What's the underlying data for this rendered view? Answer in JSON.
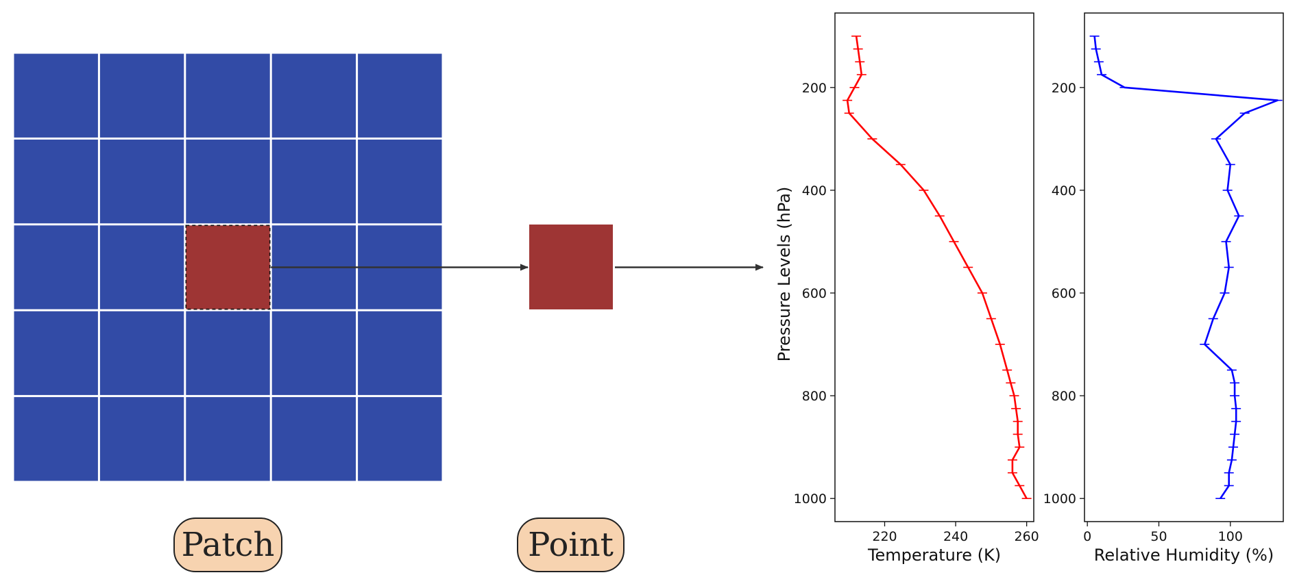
{
  "labels": {
    "patch": "Patch",
    "point": "Point"
  },
  "colors": {
    "grid_blue": "#324ba6",
    "cell_red": "#9e3534",
    "arrow": "#333333",
    "pill_fill": "#f7d3b0",
    "temperature_line": "#ff0000",
    "humidity_line": "#0000ff"
  },
  "grid": {
    "rows": 5,
    "cols": 5,
    "highlight_row": 2,
    "highlight_col": 2
  },
  "chart_data": [
    {
      "type": "line",
      "title": "",
      "xlabel": "Temperature (K)",
      "ylabel": "Pressure Levels (hPa)",
      "xlim": [
        206,
        262
      ],
      "ylim": [
        1045,
        55
      ],
      "y_inverted": true,
      "xticks": [
        220,
        240,
        260
      ],
      "yticks": [
        200,
        400,
        600,
        800,
        1000
      ],
      "error_bars": true,
      "series": [
        {
          "color": "#ff0000",
          "points": [
            [
              212,
              100
            ],
            [
              212.5,
              125
            ],
            [
              213,
              150
            ],
            [
              213.5,
              175
            ],
            [
              211.5,
              200
            ],
            [
              209.5,
              225
            ],
            [
              210,
              250
            ],
            [
              216.5,
              300
            ],
            [
              224.5,
              350
            ],
            [
              231,
              400
            ],
            [
              235.5,
              450
            ],
            [
              239.5,
              500
            ],
            [
              243.5,
              550
            ],
            [
              247.5,
              600
            ],
            [
              250,
              650
            ],
            [
              252.5,
              700
            ],
            [
              254.5,
              750
            ],
            [
              255.5,
              775
            ],
            [
              256.5,
              800
            ],
            [
              257,
              825
            ],
            [
              257.5,
              850
            ],
            [
              257.5,
              875
            ],
            [
              258,
              900
            ],
            [
              256,
              925
            ],
            [
              256,
              950
            ],
            [
              258,
              975
            ],
            [
              260,
              1000
            ]
          ]
        }
      ]
    },
    {
      "type": "line",
      "title": "",
      "xlabel": "Relative Humidity (%)",
      "ylabel": "",
      "xlim": [
        -2,
        137
      ],
      "ylim": [
        1045,
        55
      ],
      "y_inverted": true,
      "xticks": [
        0,
        50,
        100
      ],
      "yticks": [
        200,
        400,
        600,
        800,
        1000
      ],
      "error_bars": true,
      "series": [
        {
          "color": "#0000ff",
          "points": [
            [
              5,
              100
            ],
            [
              6,
              125
            ],
            [
              8,
              150
            ],
            [
              10,
              175
            ],
            [
              26,
              200
            ],
            [
              133,
              225
            ],
            [
              110,
              250
            ],
            [
              90,
              300
            ],
            [
              100,
              350
            ],
            [
              98,
              400
            ],
            [
              106,
              450
            ],
            [
              97,
              500
            ],
            [
              99,
              550
            ],
            [
              96,
              600
            ],
            [
              88,
              650
            ],
            [
              82,
              700
            ],
            [
              101,
              750
            ],
            [
              103,
              775
            ],
            [
              103,
              800
            ],
            [
              104,
              825
            ],
            [
              104,
              850
            ],
            [
              103,
              875
            ],
            [
              102,
              900
            ],
            [
              101,
              925
            ],
            [
              99,
              950
            ],
            [
              99,
              975
            ],
            [
              93,
              1000
            ]
          ]
        }
      ]
    }
  ]
}
